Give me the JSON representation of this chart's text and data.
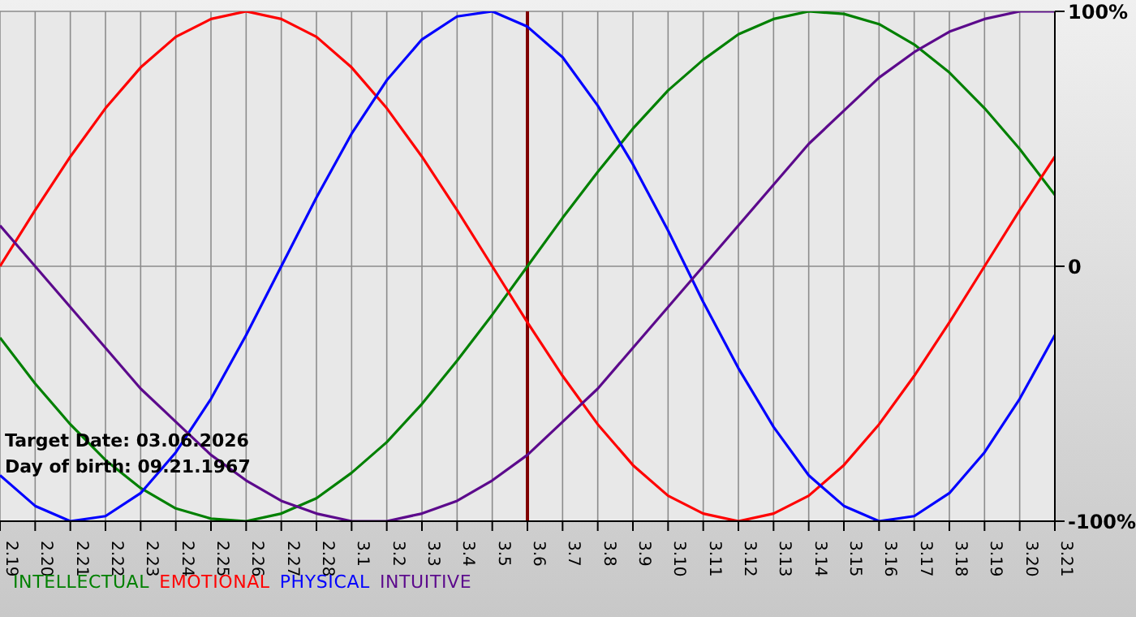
{
  "chart_data": {
    "type": "line",
    "categories": [
      "2.19",
      "2.20",
      "2.21",
      "2.22",
      "2.23",
      "2.24",
      "2.25",
      "2.26",
      "2.27",
      "2.28",
      "3.1",
      "3.2",
      "3.3",
      "3.4",
      "3.5",
      "3.6",
      "3.7",
      "3.8",
      "3.9",
      "3.10",
      "3.11",
      "3.12",
      "3.13",
      "3.14",
      "3.15",
      "3.16",
      "3.17",
      "3.18",
      "3.19",
      "3.20",
      "3.21"
    ],
    "series": [
      {
        "name": "INTELLECTUAL",
        "color": "#008000",
        "values": [
          -28,
          -46,
          -62,
          -76,
          -87,
          -95,
          -99,
          -100,
          -97,
          -91,
          -81,
          -69,
          -54,
          -37,
          -19,
          0,
          19,
          37,
          54,
          69,
          81,
          91,
          97,
          100,
          99,
          95,
          87,
          76,
          62,
          46,
          28
        ]
      },
      {
        "name": "EMOTIONAL",
        "color": "#ff0000",
        "values": [
          0,
          22,
          43,
          62,
          78,
          90,
          97,
          100,
          97,
          90,
          78,
          62,
          43,
          22,
          0,
          -22,
          -43,
          -62,
          -78,
          -90,
          -97,
          -100,
          -97,
          -90,
          -78,
          -62,
          -43,
          -22,
          0,
          22,
          43
        ]
      },
      {
        "name": "PHYSICAL",
        "color": "#0000ff",
        "values": [
          -82,
          -94,
          -100,
          -98,
          -89,
          -73,
          -52,
          -27,
          0,
          27,
          52,
          73,
          89,
          98,
          100,
          94,
          82,
          63,
          40,
          14,
          -14,
          -40,
          -63,
          -82,
          -94,
          -100,
          -98,
          -89,
          -73,
          -52,
          -27
        ]
      },
      {
        "name": "INTUITIVE",
        "color": "#5c0a8c",
        "values": [
          16,
          0,
          -16,
          -32,
          -48,
          -61,
          -74,
          -84,
          -92,
          -97,
          -100,
          -100,
          -97,
          -92,
          -84,
          -74,
          -61,
          -48,
          -32,
          -16,
          0,
          16,
          32,
          48,
          61,
          74,
          84,
          92,
          97,
          100,
          100
        ]
      }
    ],
    "ylim": [
      -100,
      100
    ],
    "yticks": [
      {
        "value": -100,
        "label": "-100%"
      },
      0,
      {
        "value": 100,
        "label": "100%"
      }
    ],
    "grid": true,
    "legend": "bottom left",
    "ref_lines": [
      {
        "axis": "x",
        "value": "3.6",
        "color": "#800000"
      }
    ],
    "annotations": [
      "Target Date: 03.06.2026",
      "Day of birth: 09.21.1967"
    ]
  }
}
